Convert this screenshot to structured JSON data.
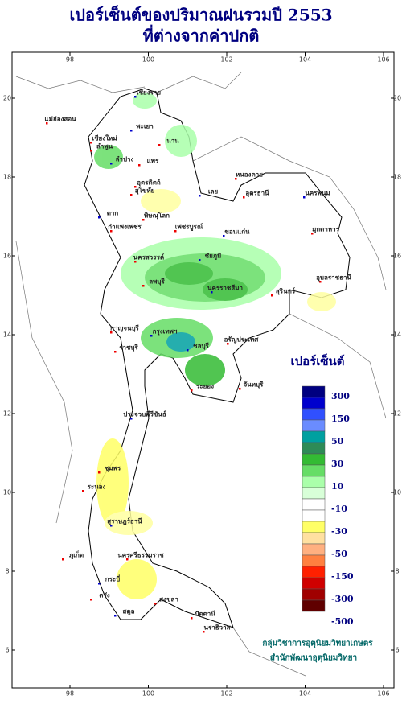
{
  "title": [
    "เปอร์เซ็นต์ของปริมาณฝนรวมปี 2553",
    "ที่ต่างจากค่าปกติ"
  ],
  "map": {
    "lon_ticks": [
      98,
      100,
      102,
      104,
      106
    ],
    "lat_ticks": [
      6,
      8,
      10,
      12,
      14,
      16,
      18,
      20
    ],
    "provinces": [
      "เชียงราย",
      "แม่ฮ่องสอน",
      "เชียงใหม่",
      "พะเยา",
      "น่าน",
      "ลำพูน",
      "ลำปาง",
      "แพร่",
      "อุตรดิตถ์",
      "ตาก",
      "สุโขทัย",
      "พิษณุโลก",
      "เลย",
      "หนองคาย",
      "อุดรธานี",
      "นครพนม",
      "กำแพงเพชร",
      "เพชรบูรณ์",
      "ขอนแก่น",
      "มุกดาหาร",
      "นครสวรรค์",
      "ชัยภูมิ",
      "อุบลราชธานี",
      "ลพบุรี",
      "นครราชสีมา",
      "สุรินทร์",
      "กาญจนบุรี",
      "กรุงเทพฯ",
      "อรัญประเทศ",
      "ราชบุรี",
      "ชลบุรี",
      "จันทบุรี",
      "ระยอง",
      "ประจวบคีรีขันธ์",
      "ชุมพร",
      "ระนอง",
      "สุราษฎร์ธานี",
      "ภูเก็ต",
      "นครศรีธรรมราช",
      "กระบี่",
      "ตรัง",
      "สงขลา",
      "สตูล",
      "ปัตตานี",
      "นราธิวาส"
    ]
  },
  "legend": {
    "title": "เปอร์เซ็นต์",
    "colors": [
      "#000080",
      "#0000cd",
      "#3050ff",
      "#6a8cff",
      "#00a0a0",
      "#2e8b57",
      "#33bb33",
      "#66dd66",
      "#aaffaa",
      "#d8ffd8",
      "#ffffff",
      "#ffffff",
      "#ffff66",
      "#ffe0a0",
      "#ffb080",
      "#ff8040",
      "#ff2000",
      "#d00000",
      "#a00000",
      "#600000"
    ],
    "labels": [
      300,
      150,
      50,
      30,
      10,
      -10,
      -30,
      -50,
      -150,
      -300,
      -500
    ]
  },
  "credit": [
    "กลุ่มวิชาการอุตุนิยมวิทยาเกษตร",
    "สำนักพัฒนาอุตุนิยมวิทยา"
  ]
}
